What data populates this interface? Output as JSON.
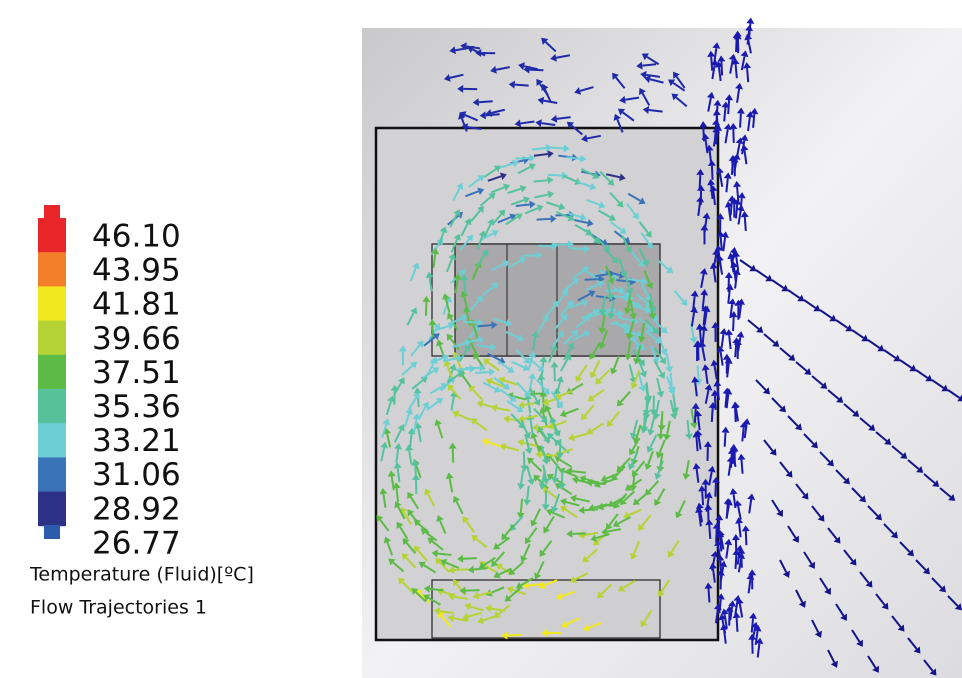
{
  "legend": {
    "labels": [
      "46.10",
      "43.95",
      "41.81",
      "39.66",
      "37.51",
      "35.36",
      "33.21",
      "31.06",
      "28.92",
      "26.77"
    ],
    "colors": [
      "#e8262a",
      "#f47f2a",
      "#f2e81e",
      "#b5d334",
      "#5cbb46",
      "#55c29b",
      "#6dcfd6",
      "#3b73b9",
      "#2e3287"
    ],
    "quantity": "Temperature (Fluid)[ºC]",
    "plot_name": "Flow Trajectories 1"
  }
}
